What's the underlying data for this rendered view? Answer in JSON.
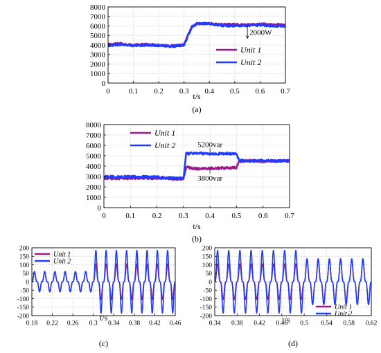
{
  "colors": {
    "unit1": "#9a1a8c",
    "unit2": "#1f3cff",
    "grid": "#d0d0d0",
    "axis": "#000000"
  },
  "chart_data": [
    {
      "id": "a",
      "type": "line",
      "panel_label": "(a)",
      "xlabel": "t/s",
      "ylabel": "",
      "xlim": [
        0,
        0.7
      ],
      "ylim": [
        0,
        8000
      ],
      "xticks": [
        0,
        0.1,
        0.2,
        0.3,
        0.4,
        0.5,
        0.6,
        0.7
      ],
      "xtick_labels": [
        "0",
        "0.1",
        "0.2",
        "0.3",
        "0.4",
        "0.5",
        "0.6",
        "0.7"
      ],
      "yticks": [
        0,
        1000,
        2000,
        3000,
        4000,
        5000,
        6000,
        7000,
        8000
      ],
      "ytick_labels": [
        "0",
        "1000",
        "2000",
        "3000",
        "4000",
        "5000",
        "6000",
        "7000",
        "8000"
      ],
      "grid": true,
      "legend_position": "lower-right",
      "annotations": [
        {
          "text": "2000W",
          "x": 0.55,
          "y": 5000
        }
      ],
      "series": [
        {
          "name": "Unit 1",
          "color": "#9a1a8c",
          "x": [
            0,
            0.05,
            0.1,
            0.15,
            0.2,
            0.25,
            0.3,
            0.33,
            0.35,
            0.4,
            0.45,
            0.5,
            0.55,
            0.6,
            0.65,
            0.7
          ],
          "y": [
            4050,
            4150,
            3980,
            4060,
            4000,
            3900,
            4050,
            5900,
            6200,
            6250,
            6150,
            6150,
            6100,
            6200,
            6150,
            6100
          ]
        },
        {
          "name": "Unit 2",
          "color": "#1f3cff",
          "x": [
            0,
            0.05,
            0.1,
            0.15,
            0.2,
            0.25,
            0.3,
            0.33,
            0.35,
            0.4,
            0.45,
            0.5,
            0.55,
            0.6,
            0.65,
            0.7
          ],
          "y": [
            3950,
            4050,
            3900,
            4000,
            3950,
            3850,
            4000,
            5800,
            6300,
            6200,
            6050,
            6000,
            6050,
            6100,
            6000,
            6000
          ]
        }
      ]
    },
    {
      "id": "b",
      "type": "line",
      "panel_label": "(b)",
      "xlabel": "t/s",
      "ylabel": "",
      "xlim": [
        0,
        0.7
      ],
      "ylim": [
        0,
        8000
      ],
      "xticks": [
        0,
        0.1,
        0.2,
        0.3,
        0.4,
        0.5,
        0.6,
        0.7
      ],
      "xtick_labels": [
        "0",
        "0.1",
        "0.2",
        "0.3",
        "0.4",
        "0.5",
        "0.6",
        "0.7"
      ],
      "yticks": [
        0,
        1000,
        2000,
        3000,
        4000,
        5000,
        6000,
        7000,
        8000
      ],
      "ytick_labels": [
        "0",
        "1000",
        "2000",
        "3000",
        "4000",
        "5000",
        "6000",
        "7000",
        "8000"
      ],
      "grid": true,
      "legend_position": "upper-left",
      "annotations": [
        {
          "text": "5200var",
          "x": 0.4,
          "y": 5200
        },
        {
          "text": "3800var",
          "x": 0.4,
          "y": 3800
        }
      ],
      "series": [
        {
          "name": "Unit 1",
          "color": "#9a1a8c",
          "x": [
            0,
            0.05,
            0.1,
            0.15,
            0.2,
            0.22,
            0.25,
            0.3,
            0.31,
            0.35,
            0.4,
            0.45,
            0.5,
            0.51,
            0.55,
            0.6,
            0.65,
            0.7
          ],
          "y": [
            2850,
            2800,
            2850,
            2850,
            2800,
            2900,
            2800,
            2750,
            3900,
            3750,
            3800,
            3800,
            3850,
            4450,
            4550,
            4450,
            4500,
            4500
          ]
        },
        {
          "name": "Unit 2",
          "color": "#1f3cff",
          "x": [
            0,
            0.05,
            0.1,
            0.15,
            0.2,
            0.22,
            0.25,
            0.3,
            0.31,
            0.35,
            0.4,
            0.45,
            0.5,
            0.51,
            0.55,
            0.6,
            0.65,
            0.7
          ],
          "y": [
            3000,
            2950,
            3000,
            2950,
            2950,
            2850,
            2850,
            2800,
            5200,
            5250,
            5200,
            5200,
            5200,
            4550,
            4450,
            4550,
            4500,
            4500
          ]
        }
      ]
    },
    {
      "id": "c",
      "type": "line",
      "panel_label": "(c)",
      "xlabel": "t/s",
      "ylabel": "",
      "xlim": [
        0.18,
        0.46
      ],
      "ylim": [
        -200,
        200
      ],
      "xticks": [
        0.18,
        0.22,
        0.26,
        0.3,
        0.34,
        0.38,
        0.42,
        0.46
      ],
      "xtick_labels": [
        "0.18",
        "0.22",
        "0.26",
        "0.3",
        "0.34",
        "0.38",
        "0.42",
        "0.46"
      ],
      "yticks": [
        -200,
        -150,
        -100,
        -50,
        0,
        50,
        100,
        150,
        200
      ],
      "ytick_labels": [
        "-200",
        "-150",
        "-100",
        "-50",
        "0",
        "50",
        "100",
        "150",
        "200"
      ],
      "grid": true,
      "legend_position": "upper-left",
      "frequency_hz": 50,
      "series": [
        {
          "name": "Unit 1",
          "color": "#9a1a8c",
          "segments": [
            {
              "t_start": 0.18,
              "t_end": 0.3,
              "amplitude": 60
            },
            {
              "t_start": 0.3,
              "t_end": 0.46,
              "amplitude": 105
            }
          ]
        },
        {
          "name": "Unit 2",
          "color": "#1f3cff",
          "segments": [
            {
              "t_start": 0.18,
              "t_end": 0.3,
              "amplitude": 60
            },
            {
              "t_start": 0.3,
              "t_end": 0.46,
              "amplitude": 185
            }
          ]
        }
      ]
    },
    {
      "id": "d",
      "type": "line",
      "panel_label": "(d)",
      "xlabel": "t/s",
      "ylabel": "",
      "xlim": [
        0.34,
        0.62
      ],
      "ylim": [
        -200,
        200
      ],
      "xticks": [
        0.34,
        0.38,
        0.42,
        0.46,
        0.5,
        0.54,
        0.58,
        0.62
      ],
      "xtick_labels": [
        "0.34",
        "0.38",
        "0.42",
        "0.46",
        "0.5",
        "0.54",
        "0.58",
        "0.62"
      ],
      "yticks": [
        -200,
        -150,
        -100,
        -50,
        0,
        50,
        100,
        150,
        200
      ],
      "ytick_labels": [
        "-200",
        "-150",
        "-100",
        "-50",
        "0",
        "50",
        "100",
        "150",
        "200"
      ],
      "grid": true,
      "legend_position": "lower-right",
      "frequency_hz": 50,
      "series": [
        {
          "name": "Unit 1",
          "color": "#9a1a8c",
          "segments": [
            {
              "t_start": 0.34,
              "t_end": 0.5,
              "amplitude": 105
            },
            {
              "t_start": 0.5,
              "t_end": 0.62,
              "amplitude": 135
            }
          ]
        },
        {
          "name": "Unit 2",
          "color": "#1f3cff",
          "segments": [
            {
              "t_start": 0.34,
              "t_end": 0.5,
              "amplitude": 185
            },
            {
              "t_start": 0.5,
              "t_end": 0.62,
              "amplitude": 135
            }
          ]
        }
      ]
    }
  ]
}
